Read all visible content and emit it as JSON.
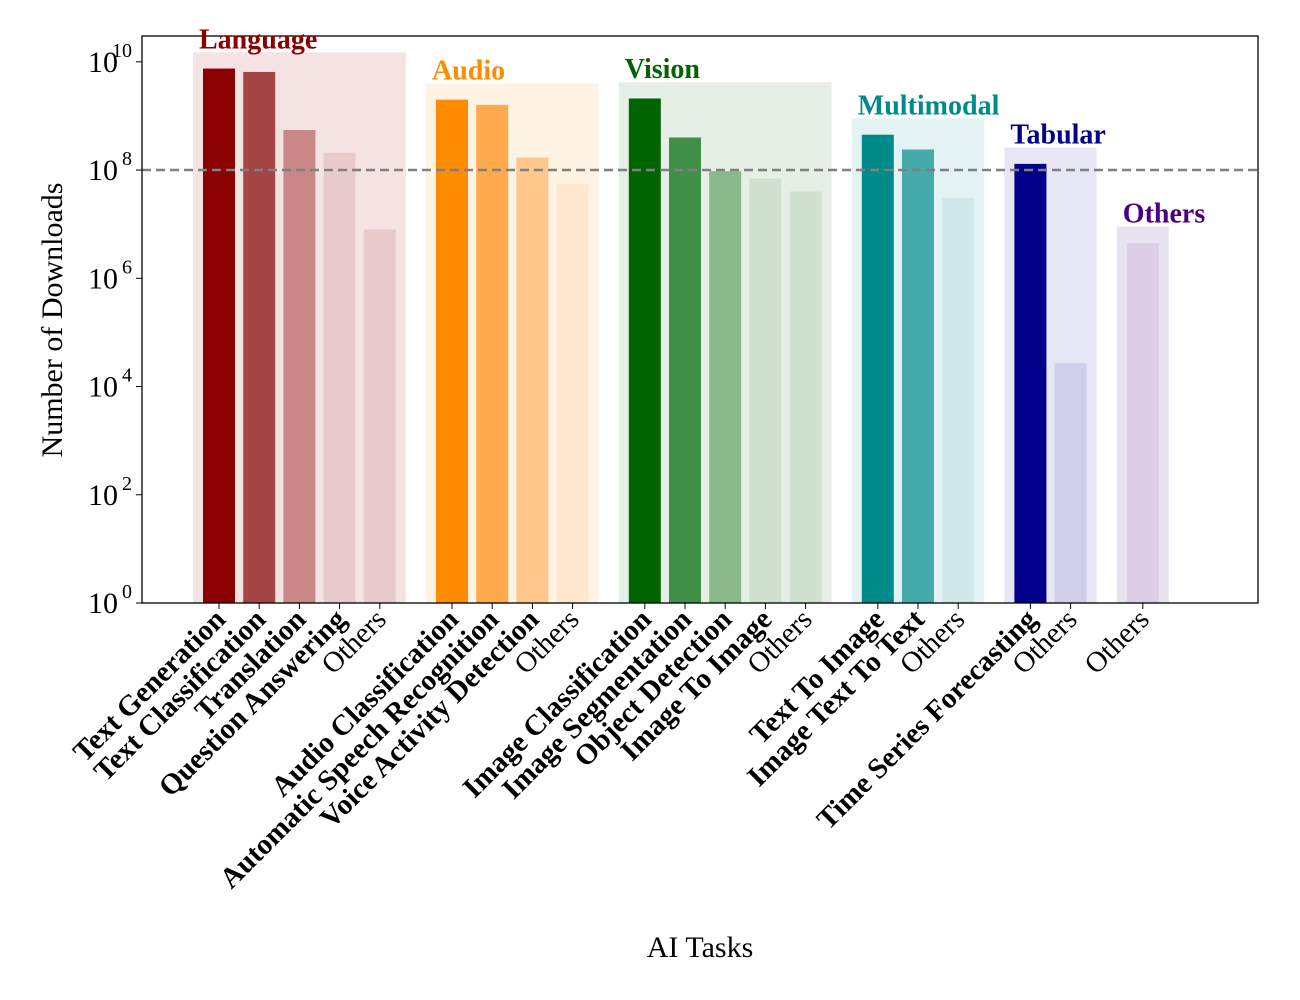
{
  "chart_data": {
    "type": "bar",
    "xlabel": "AI Tasks",
    "ylabel": "Number of Downloads",
    "y_scale": "log",
    "ylim": [
      1,
      30000000000
    ],
    "y_ticks": [
      {
        "value": 1,
        "base": "10",
        "exp": "0"
      },
      {
        "value": 100,
        "base": "10",
        "exp": "2"
      },
      {
        "value": 10000,
        "base": "10",
        "exp": "4"
      },
      {
        "value": 1000000,
        "base": "10",
        "exp": "6"
      },
      {
        "value": 100000000,
        "base": "10",
        "exp": "8"
      },
      {
        "value": 10000000000,
        "base": "10",
        "exp": "10"
      }
    ],
    "reference_line": {
      "value": 100000000,
      "style": "dashed",
      "color": "#808080"
    },
    "grid": false,
    "groups": [
      {
        "name": "Language",
        "color": "#8b0000",
        "bg_color": "#f5e3e3",
        "bars": [
          {
            "label": "Text Generation",
            "value": 7500000000,
            "bold": true,
            "color": "#8b0000"
          },
          {
            "label": "Text Classification",
            "value": 6500000000,
            "bold": true,
            "color": "#a54444"
          },
          {
            "label": "Translation",
            "value": 550000000,
            "bold": true,
            "color": "#c98787"
          },
          {
            "label": "Question Answering",
            "value": 210000000,
            "bold": true,
            "color": "#e8caca"
          },
          {
            "label": "Others",
            "value": 8000000,
            "bold": false,
            "color": "#e8caca"
          }
        ]
      },
      {
        "name": "Audio",
        "color": "#ff8c00",
        "bg_color": "#fff3e3",
        "bars": [
          {
            "label": "Audio Classification",
            "value": 2000000000,
            "bold": true,
            "color": "#ff8c00"
          },
          {
            "label": "Automatic Speech Recognition",
            "value": 1600000000,
            "bold": true,
            "color": "#ffa94d"
          },
          {
            "label": "Voice Activity Detection",
            "value": 170000000,
            "bold": true,
            "color": "#ffc78c"
          },
          {
            "label": "Others",
            "value": 55000000,
            "bold": false,
            "color": "#ffe6cc"
          }
        ]
      },
      {
        "name": "Vision",
        "color": "#006400",
        "bg_color": "#e6efe6",
        "bars": [
          {
            "label": "Image Classification",
            "value": 2100000000,
            "bold": true,
            "color": "#006400"
          },
          {
            "label": "Image Segmentation",
            "value": 400000000,
            "bold": true,
            "color": "#428f49"
          },
          {
            "label": "Object Detection",
            "value": 95000000,
            "bold": true,
            "color": "#8ab88a"
          },
          {
            "label": "Image To Image",
            "value": 70000000,
            "bold": true,
            "color": "#cfe0cf"
          },
          {
            "label": "Others",
            "value": 40000000,
            "bold": false,
            "color": "#cfe0cf"
          }
        ]
      },
      {
        "name": "Multimodal",
        "color": "#008b8b",
        "bg_color": "#e3f3f3",
        "bars": [
          {
            "label": "Text To Image",
            "value": 450000000,
            "bold": true,
            "color": "#008b8b"
          },
          {
            "label": "Image Text To Text",
            "value": 240000000,
            "bold": true,
            "color": "#45aaaa"
          },
          {
            "label": "Others",
            "value": 30000000,
            "bold": false,
            "color": "#cfe8e9"
          }
        ]
      },
      {
        "name": "Tabular",
        "color": "#00008b",
        "bg_color": "#e6e6f4",
        "bars": [
          {
            "label": "Time Series Forecasting",
            "value": 130000000,
            "bold": true,
            "color": "#00008b"
          },
          {
            "label": "Others",
            "value": 27000,
            "bold": false,
            "color": "#cfcfea"
          }
        ]
      },
      {
        "name": "Others",
        "color": "#4b0082",
        "bg_color": "#e9e2f1",
        "bars": [
          {
            "label": "Others",
            "value": 4500000,
            "bold": false,
            "color": "#dccfe6"
          }
        ]
      }
    ]
  }
}
